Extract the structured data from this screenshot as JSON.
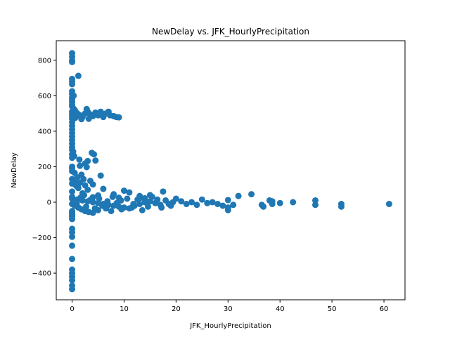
{
  "chart_data": {
    "type": "scatter",
    "title": "NewDelay vs. JFK_HourlyPrecipitation",
    "xlabel": "JFK_HourlyPrecipitation",
    "ylabel": "NewDelay",
    "xlim": [
      -3.05,
      64.05
    ],
    "ylim": [
      -550,
      910
    ],
    "xticks": [
      0,
      10,
      20,
      30,
      40,
      50,
      60
    ],
    "yticks": [
      -400,
      -200,
      0,
      200,
      400,
      600,
      800
    ],
    "ytick_labels": [
      "−400",
      "−200",
      "0",
      "200",
      "400",
      "600",
      "800"
    ],
    "grid": false,
    "marker_color": "#1f77b4",
    "series": [
      {
        "points": [
          [
            0,
            840
          ],
          [
            0,
            820
          ],
          [
            0,
            800
          ],
          [
            0,
            790
          ],
          [
            1.2,
            712
          ],
          [
            0,
            695
          ],
          [
            0,
            680
          ],
          [
            0,
            665
          ],
          [
            0,
            625
          ],
          [
            0,
            610
          ],
          [
            0.3,
            600
          ],
          [
            0,
            590
          ],
          [
            0,
            580
          ],
          [
            0,
            565
          ],
          [
            0,
            550
          ],
          [
            0,
            540
          ],
          [
            0.2,
            530
          ],
          [
            0.5,
            520
          ],
          [
            0,
            510
          ],
          [
            0.8,
            505
          ],
          [
            1,
            500
          ],
          [
            0,
            495
          ],
          [
            1.5,
            490
          ],
          [
            0,
            485
          ],
          [
            2,
            480
          ],
          [
            0.6,
            475
          ],
          [
            0,
            470
          ],
          [
            1.8,
            468
          ],
          [
            2.5,
            500
          ],
          [
            3,
            510
          ],
          [
            3.2,
            470
          ],
          [
            2.8,
            525
          ],
          [
            3.5,
            495
          ],
          [
            4,
            485
          ],
          [
            4.5,
            505
          ],
          [
            5,
            490
          ],
          [
            5.5,
            510
          ],
          [
            6,
            480
          ],
          [
            6.5,
            500
          ],
          [
            7,
            510
          ],
          [
            7.3,
            490
          ],
          [
            8,
            485
          ],
          [
            8.5,
            480
          ],
          [
            9,
            478
          ],
          [
            0,
            450
          ],
          [
            0,
            430
          ],
          [
            0,
            410
          ],
          [
            0,
            390
          ],
          [
            0,
            370
          ],
          [
            0,
            350
          ],
          [
            0,
            330
          ],
          [
            0,
            310
          ],
          [
            0,
            295
          ],
          [
            0.2,
            285
          ],
          [
            0,
            270
          ],
          [
            0.4,
            260
          ],
          [
            0,
            250
          ],
          [
            3.8,
            278
          ],
          [
            4.2,
            270
          ],
          [
            1.4,
            240
          ],
          [
            3,
            232
          ],
          [
            4.5,
            235
          ],
          [
            2.5,
            218
          ],
          [
            1.5,
            205
          ],
          [
            0,
            200
          ],
          [
            2.8,
            198
          ],
          [
            0,
            190
          ],
          [
            1.8,
            155
          ],
          [
            0.5,
            165
          ],
          [
            5.5,
            150
          ],
          [
            0,
            175
          ],
          [
            1,
            140
          ],
          [
            0,
            130
          ],
          [
            2.2,
            130
          ],
          [
            3.5,
            120
          ],
          [
            0.4,
            120
          ],
          [
            1.5,
            110
          ],
          [
            0,
            105
          ],
          [
            4,
            100
          ],
          [
            2.5,
            95
          ],
          [
            0.8,
            92
          ],
          [
            1.2,
            80
          ],
          [
            6,
            75
          ],
          [
            3,
            70
          ],
          [
            10,
            65
          ],
          [
            0,
            60
          ],
          [
            11,
            55
          ],
          [
            2,
            50
          ],
          [
            8,
            45
          ],
          [
            15,
            40
          ],
          [
            5,
            38
          ],
          [
            13,
            35
          ],
          [
            17.5,
            60
          ],
          [
            0,
            30
          ],
          [
            4,
            28
          ],
          [
            9,
            25
          ],
          [
            14,
            22
          ],
          [
            20,
            20
          ],
          [
            25,
            15
          ],
          [
            30,
            12
          ],
          [
            32,
            35
          ],
          [
            34.5,
            45
          ],
          [
            0,
            20
          ],
          [
            1,
            15
          ],
          [
            2,
            10
          ],
          [
            3,
            5
          ],
          [
            4,
            0
          ],
          [
            5,
            -5
          ],
          [
            6,
            -10
          ],
          [
            7,
            -15
          ],
          [
            8,
            -20
          ],
          [
            9,
            -25
          ],
          [
            10,
            -30
          ],
          [
            11,
            -35
          ],
          [
            12,
            -20
          ],
          [
            13,
            -10
          ],
          [
            14,
            0
          ],
          [
            15,
            5
          ],
          [
            16,
            -5
          ],
          [
            17,
            -15
          ],
          [
            18,
            10
          ],
          [
            19,
            -20
          ],
          [
            21,
            5
          ],
          [
            22,
            -10
          ],
          [
            23,
            0
          ],
          [
            24,
            -15
          ],
          [
            26,
            -5
          ],
          [
            27,
            0
          ],
          [
            28,
            -10
          ],
          [
            29,
            -20
          ],
          [
            30,
            -30
          ],
          [
            30,
            -45
          ],
          [
            31,
            -15
          ],
          [
            36.5,
            -15
          ],
          [
            36.8,
            -25
          ],
          [
            38,
            10
          ],
          [
            38.5,
            5
          ],
          [
            38.5,
            -10
          ],
          [
            40,
            -5
          ],
          [
            42.5,
            0
          ],
          [
            46.8,
            10
          ],
          [
            46.8,
            -15
          ],
          [
            51.8,
            -10
          ],
          [
            51.8,
            -25
          ],
          [
            61,
            -10
          ],
          [
            0,
            -10
          ],
          [
            0.5,
            -20
          ],
          [
            1.2,
            -30
          ],
          [
            1.8,
            -40
          ],
          [
            2.5,
            -50
          ],
          [
            3.2,
            -55
          ],
          [
            4,
            -60
          ],
          [
            5,
            -45
          ],
          [
            6.5,
            -35
          ],
          [
            7.5,
            -50
          ],
          [
            9.5,
            -40
          ],
          [
            11.5,
            -30
          ],
          [
            13.5,
            -45
          ],
          [
            0,
            -50
          ],
          [
            0,
            -60
          ],
          [
            0,
            -70
          ],
          [
            0,
            -80
          ],
          [
            0,
            -95
          ],
          [
            0,
            -150
          ],
          [
            0,
            -170
          ],
          [
            0,
            -195
          ],
          [
            0,
            -245
          ],
          [
            0,
            -320
          ],
          [
            0,
            -380
          ],
          [
            0,
            -400
          ],
          [
            0,
            -420
          ],
          [
            0,
            -440
          ],
          [
            0,
            -470
          ],
          [
            0,
            -490
          ],
          [
            0.6,
            10
          ],
          [
            0.9,
            -5
          ],
          [
            1.6,
            25
          ],
          [
            2.3,
            40
          ],
          [
            2.7,
            -25
          ],
          [
            3.6,
            15
          ],
          [
            4.4,
            -35
          ],
          [
            5.2,
            20
          ],
          [
            5.8,
            -20
          ],
          [
            6.8,
            5
          ],
          [
            7.8,
            30
          ],
          [
            8.6,
            -5
          ],
          [
            9.4,
            10
          ],
          [
            10.6,
            20
          ],
          [
            11.8,
            -10
          ],
          [
            12.6,
            15
          ],
          [
            13.2,
            25
          ],
          [
            14.6,
            -25
          ],
          [
            15.4,
            30
          ],
          [
            16.4,
            15
          ],
          [
            17.2,
            -30
          ],
          [
            18.6,
            -10
          ],
          [
            19.4,
            0
          ]
        ]
      }
    ]
  }
}
